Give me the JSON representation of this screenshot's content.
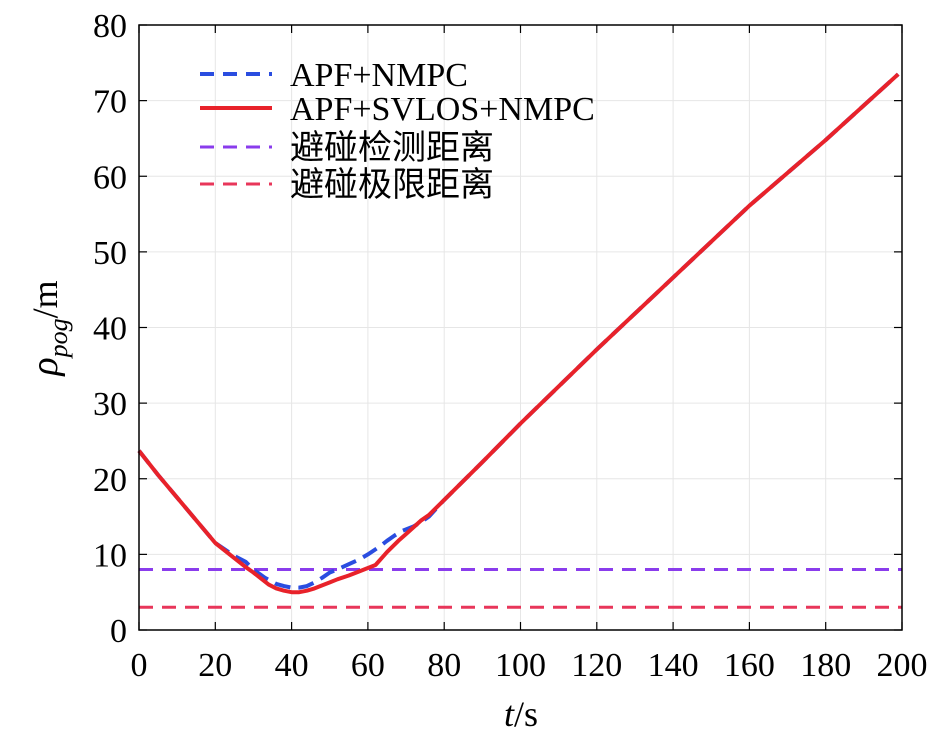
{
  "chart_data": {
    "type": "line",
    "xlabel": {
      "var": "t",
      "unit": "/s"
    },
    "ylabel": {
      "var": "ρ",
      "sub": "pog",
      "unit": "/m"
    },
    "xlim": [
      0,
      200
    ],
    "ylim": [
      0,
      80
    ],
    "xticks": [
      0,
      20,
      40,
      60,
      80,
      100,
      120,
      140,
      160,
      180,
      200
    ],
    "yticks": [
      0,
      10,
      20,
      30,
      40,
      50,
      60,
      70,
      80
    ],
    "grid": true,
    "legend_position": "top-left",
    "series": [
      {
        "name": "APF+NMPC",
        "style": "dashed",
        "color": "#2a4de0",
        "x": [
          0,
          5,
          10,
          15,
          20,
          25,
          28,
          30,
          33,
          36,
          38,
          40,
          42,
          44,
          46,
          48,
          50,
          52,
          55,
          58,
          60,
          63,
          65,
          67,
          69,
          71,
          72,
          74,
          76,
          80,
          90,
          100,
          120,
          140,
          160,
          180,
          199
        ],
        "y": [
          23.7,
          20.5,
          17.5,
          14.5,
          11.5,
          9.8,
          9.0,
          8.0,
          6.9,
          6.1,
          5.8,
          5.6,
          5.6,
          5.8,
          6.3,
          6.9,
          7.6,
          8.0,
          8.7,
          9.4,
          10.0,
          11.0,
          11.8,
          12.5,
          13.1,
          13.5,
          13.7,
          14.3,
          15.0,
          17.2,
          22.2,
          27.3,
          37.1,
          46.6,
          56.1,
          64.8,
          73.5
        ]
      },
      {
        "name": "APF+SVLOS+NMPC",
        "style": "solid",
        "color": "#e8222a",
        "x": [
          0,
          5,
          10,
          15,
          20,
          25,
          28,
          30,
          32,
          34,
          36,
          38,
          40,
          42,
          44,
          46,
          48,
          50,
          52,
          55,
          58,
          60,
          62,
          65,
          68,
          70,
          72,
          74,
          76,
          80,
          90,
          100,
          120,
          140,
          160,
          180,
          199
        ],
        "y": [
          23.7,
          20.5,
          17.5,
          14.5,
          11.5,
          9.5,
          8.3,
          7.6,
          6.8,
          6.0,
          5.5,
          5.2,
          5.0,
          5.0,
          5.2,
          5.5,
          5.9,
          6.3,
          6.7,
          7.2,
          7.8,
          8.2,
          8.6,
          10.3,
          11.8,
          12.7,
          13.6,
          14.5,
          15.2,
          17.2,
          22.2,
          27.3,
          37.1,
          46.6,
          56.1,
          64.8,
          73.5
        ]
      },
      {
        "name": "避碰检测距离",
        "style": "dashed",
        "color": "#8a3cec",
        "x": [
          0,
          200
        ],
        "y": [
          8,
          8
        ]
      },
      {
        "name": "避碰极限距离",
        "style": "dashed",
        "color": "#e8365a",
        "x": [
          0,
          200
        ],
        "y": [
          3,
          3
        ]
      }
    ]
  }
}
